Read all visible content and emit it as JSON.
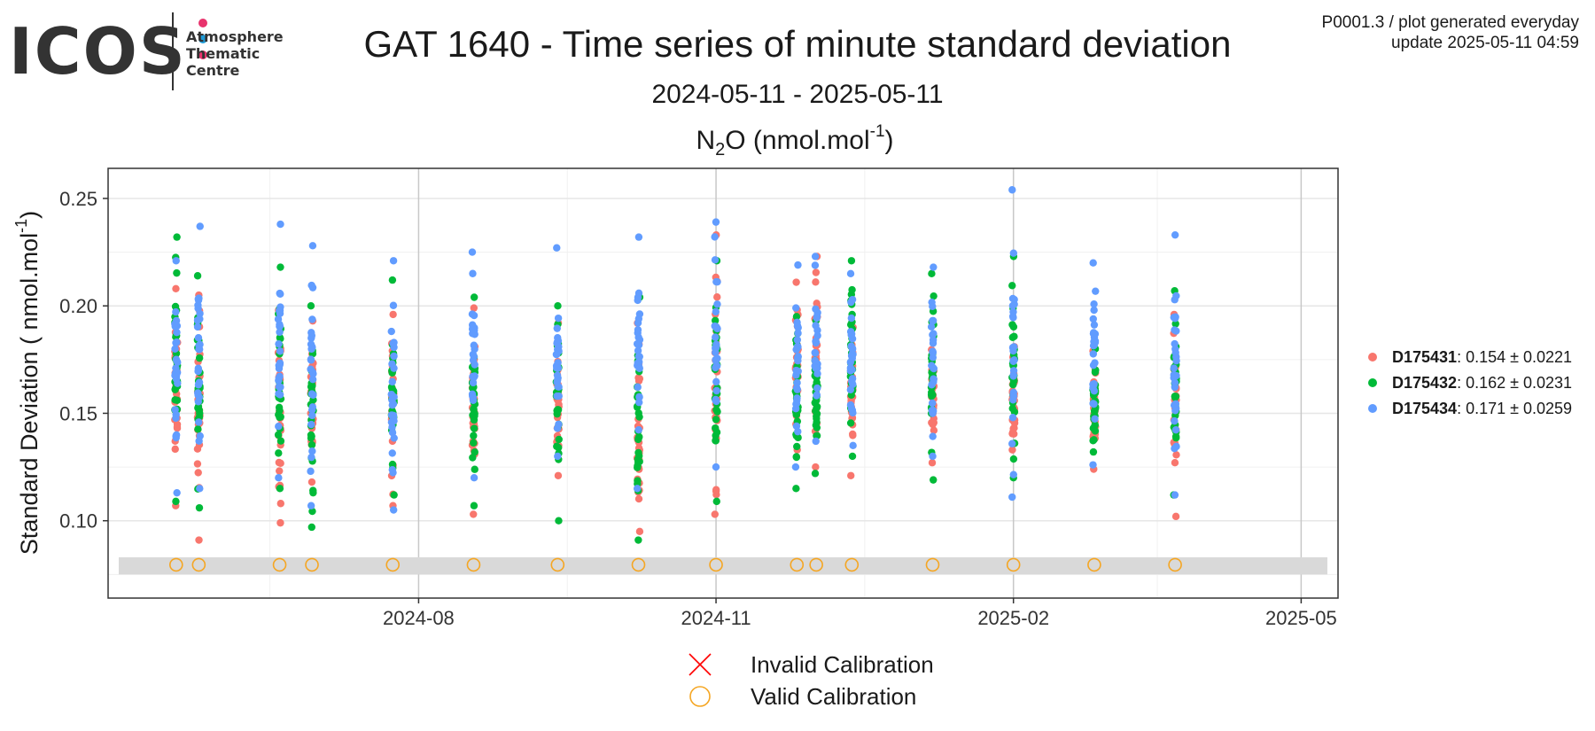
{
  "header": {
    "logo_text": "ICOS",
    "logo_sub": [
      "Atmosphere",
      "Thematic",
      "Centre"
    ],
    "logo_dot_colors": [
      "#e8336d",
      "#1d9ad6",
      "#e8336d"
    ],
    "title": "GAT 1640 - Time series of minute standard deviation",
    "date_range": "2024-05-11 - 2025-05-11",
    "meta_line1": "P0001.3 / plot generated everyday",
    "meta_line2": "update  2025-05-11 04:59"
  },
  "chart_data": {
    "type": "scatter",
    "title": "N2O (nmol.mol-1)",
    "title_parts": {
      "species": "N",
      "species_sub": "2",
      "species_after": "O (nmol.mol",
      "unit_sup": "-1",
      "unit_close": ")"
    },
    "ylabel_parts": {
      "main": "Standard Deviation ( nmol.mol",
      "sup": "-1",
      "close": ")"
    },
    "x_range": [
      "2024-05-11",
      "2025-05-11"
    ],
    "x_ticks": [
      "2024-08-01",
      "2024-11-01",
      "2025-02-01",
      "2025-05-01"
    ],
    "x_tick_labels": [
      "2024-08",
      "2024-11",
      "2025-02",
      "2025-05"
    ],
    "ylim": [
      0.064,
      0.264
    ],
    "y_ticks": [
      0.1,
      0.15,
      0.2,
      0.25
    ],
    "y_tick_labels": [
      "0.10",
      "0.15",
      "0.20",
      "0.25"
    ],
    "grid": true,
    "legend_position": "right",
    "calibration_band": [
      0.075,
      0.083
    ],
    "valid_calibration_dates": [
      "2024-05-18",
      "2024-05-25",
      "2024-06-19",
      "2024-06-29",
      "2024-07-24",
      "2024-08-18",
      "2024-09-13",
      "2024-10-08",
      "2024-11-01",
      "2024-11-26",
      "2024-12-02",
      "2024-12-13",
      "2025-01-07",
      "2025-02-01",
      "2025-02-26",
      "2025-03-23"
    ],
    "valid_calibration_y": 0.0795,
    "calibration_legend": [
      {
        "name": "Invalid Calibration",
        "marker": "cross",
        "color": "#ff0000"
      },
      {
        "name": "Valid Calibration",
        "marker": "circle",
        "color": "#f5a623"
      }
    ],
    "series": [
      {
        "name": "D175431",
        "mean": "0.154",
        "sd": "0.0221",
        "color": "#f8766d",
        "clusters": [
          {
            "date": "2024-05-18",
            "min": 0.107,
            "max": 0.208
          },
          {
            "date": "2024-05-25",
            "min": 0.091,
            "max": 0.205
          },
          {
            "date": "2024-06-19",
            "min": 0.099,
            "max": 0.198
          },
          {
            "date": "2024-06-29",
            "min": 0.118,
            "max": 0.193
          },
          {
            "date": "2024-07-24",
            "min": 0.107,
            "max": 0.196
          },
          {
            "date": "2024-08-18",
            "min": 0.103,
            "max": 0.199
          },
          {
            "date": "2024-09-13",
            "min": 0.121,
            "max": 0.192
          },
          {
            "date": "2024-10-08",
            "min": 0.095,
            "max": 0.192
          },
          {
            "date": "2024-11-01",
            "min": 0.103,
            "max": 0.233
          },
          {
            "date": "2024-11-26",
            "min": 0.133,
            "max": 0.211
          },
          {
            "date": "2024-12-02",
            "min": 0.125,
            "max": 0.223
          },
          {
            "date": "2024-12-13",
            "min": 0.121,
            "max": 0.19
          },
          {
            "date": "2025-01-07",
            "min": 0.127,
            "max": 0.192
          },
          {
            "date": "2025-02-01",
            "min": 0.133,
            "max": 0.181
          },
          {
            "date": "2025-02-26",
            "min": 0.124,
            "max": 0.179
          },
          {
            "date": "2025-03-23",
            "min": 0.102,
            "max": 0.196
          }
        ]
      },
      {
        "name": "D175432",
        "mean": "0.162",
        "sd": "0.0231",
        "color": "#00ba38",
        "clusters": [
          {
            "date": "2024-05-18",
            "min": 0.109,
            "max": 0.232
          },
          {
            "date": "2024-05-25",
            "min": 0.106,
            "max": 0.214
          },
          {
            "date": "2024-06-19",
            "min": 0.115,
            "max": 0.218
          },
          {
            "date": "2024-06-29",
            "min": 0.097,
            "max": 0.2
          },
          {
            "date": "2024-07-24",
            "min": 0.112,
            "max": 0.212
          },
          {
            "date": "2024-08-18",
            "min": 0.107,
            "max": 0.204
          },
          {
            "date": "2024-09-13",
            "min": 0.1,
            "max": 0.2
          },
          {
            "date": "2024-10-08",
            "min": 0.091,
            "max": 0.204
          },
          {
            "date": "2024-11-01",
            "min": 0.109,
            "max": 0.221
          },
          {
            "date": "2024-11-26",
            "min": 0.115,
            "max": 0.195
          },
          {
            "date": "2024-12-02",
            "min": 0.122,
            "max": 0.193
          },
          {
            "date": "2024-12-13",
            "min": 0.13,
            "max": 0.221
          },
          {
            "date": "2025-01-07",
            "min": 0.119,
            "max": 0.215
          },
          {
            "date": "2025-02-01",
            "min": 0.12,
            "max": 0.223
          },
          {
            "date": "2025-02-26",
            "min": 0.132,
            "max": 0.18
          },
          {
            "date": "2025-03-23",
            "min": 0.112,
            "max": 0.207
          }
        ]
      },
      {
        "name": "D175434",
        "mean": "0.171",
        "sd": "0.0259",
        "color": "#619cff",
        "clusters": [
          {
            "date": "2024-05-18",
            "min": 0.113,
            "max": 0.221
          },
          {
            "date": "2024-05-25",
            "min": 0.115,
            "max": 0.237
          },
          {
            "date": "2024-06-19",
            "min": 0.12,
            "max": 0.238
          },
          {
            "date": "2024-06-29",
            "min": 0.107,
            "max": 0.228
          },
          {
            "date": "2024-07-24",
            "min": 0.105,
            "max": 0.221
          },
          {
            "date": "2024-08-18",
            "min": 0.12,
            "max": 0.225
          },
          {
            "date": "2024-09-13",
            "min": 0.13,
            "max": 0.227
          },
          {
            "date": "2024-10-08",
            "min": 0.115,
            "max": 0.232
          },
          {
            "date": "2024-11-01",
            "min": 0.125,
            "max": 0.239
          },
          {
            "date": "2024-11-26",
            "min": 0.125,
            "max": 0.219
          },
          {
            "date": "2024-12-02",
            "min": 0.137,
            "max": 0.223
          },
          {
            "date": "2024-12-13",
            "min": 0.135,
            "max": 0.215
          },
          {
            "date": "2025-01-07",
            "min": 0.13,
            "max": 0.218
          },
          {
            "date": "2025-02-01",
            "min": 0.111,
            "max": 0.254
          },
          {
            "date": "2025-02-26",
            "min": 0.126,
            "max": 0.22
          },
          {
            "date": "2025-03-23",
            "min": 0.112,
            "max": 0.233
          }
        ]
      }
    ]
  }
}
